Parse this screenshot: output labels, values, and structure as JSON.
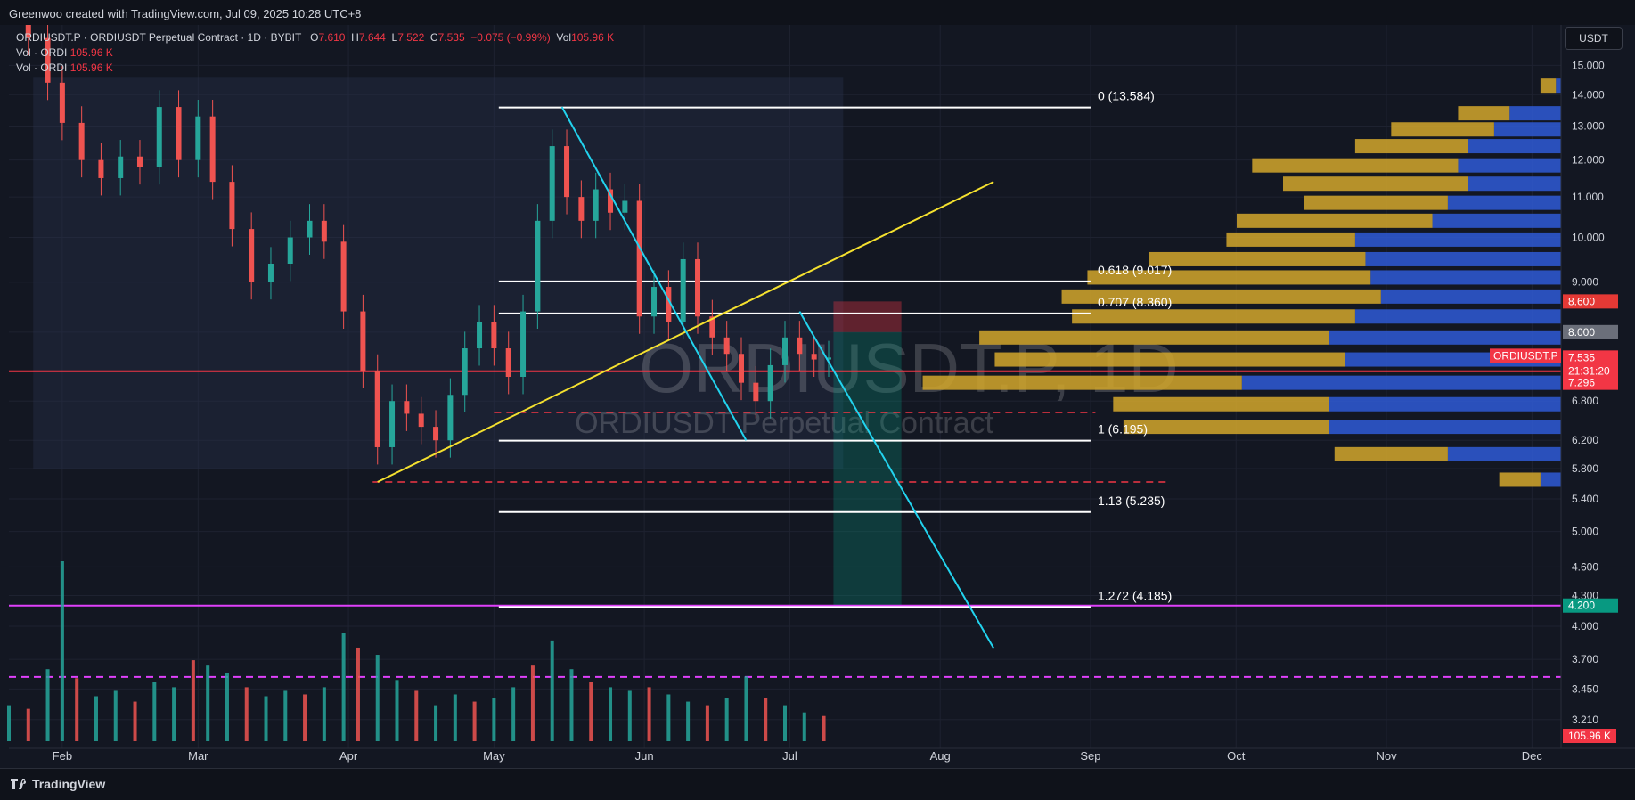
{
  "credit": "Greenwoo created with TradingView.com, Jul 09, 2025 10:28 UTC+8",
  "header": {
    "symbol_line": "ORDIUSDT.P · ORDIUSDT Perpetual Contract · 1D · BYBIT",
    "o_label": "O",
    "o_val": "7.610",
    "h_label": "H",
    "h_val": "7.644",
    "l_label": "L",
    "l_val": "7.522",
    "c_label": "C",
    "c_val": "7.535",
    "change": "−0.075 (−0.99%)",
    "vol_label": "Vol",
    "vol_val": "105.96 K",
    "vol_rows": [
      {
        "label": "Vol · ORDI",
        "value": "105.96 K"
      },
      {
        "label": "Vol · ORDI",
        "value": "105.96 K"
      }
    ]
  },
  "currency_button": "USDT",
  "watermark": {
    "symbol": "ORDIUSDT.P, 1D",
    "name": "ORDIUSDT Perpetual Contract"
  },
  "footer_brand": "TradingView",
  "colors": {
    "bg": "#131722",
    "up": "#26a69a",
    "down": "#ef5350",
    "fib": "#ffffff",
    "trend": "#f5e12f",
    "channel": "#22d3ee",
    "magenta": "#e040fb",
    "vp_up": "#d4a72c",
    "vp_down": "#2f5bd6",
    "price_line": "#f23645"
  },
  "chart_data": {
    "type": "candlestick",
    "interval": "1D",
    "y_scale": "log",
    "ylim": [
      3.0,
      16.5
    ],
    "y_ticks": [
      "15.000",
      "14.000",
      "13.000",
      "12.000",
      "11.000",
      "10.000",
      "9.000",
      "8.000",
      "7.296",
      "6.800",
      "6.200",
      "5.800",
      "5.400",
      "5.000",
      "4.600",
      "4.300",
      "4.000",
      "3.700",
      "3.450",
      "3.210"
    ],
    "x_ticks": [
      {
        "label": "Feb",
        "date": "2025-02-01"
      },
      {
        "label": "Mar",
        "date": "2025-03-01"
      },
      {
        "label": "Apr",
        "date": "2025-04-01"
      },
      {
        "label": "May",
        "date": "2025-05-01"
      },
      {
        "label": "Jun",
        "date": "2025-06-01"
      },
      {
        "label": "Jul",
        "date": "2025-07-01"
      },
      {
        "label": "Aug",
        "date": "2025-08-01"
      },
      {
        "label": "Sep",
        "date": "2025-09-01"
      },
      {
        "label": "Oct",
        "date": "2025-10-01"
      },
      {
        "label": "Nov",
        "date": "2025-11-01"
      },
      {
        "label": "Dec",
        "date": "2025-12-01"
      }
    ],
    "xlim": [
      "2025-01-21",
      "2025-12-07"
    ],
    "price_series": [
      [
        "2025-01-21",
        17.2
      ],
      [
        "2025-01-25",
        16.0
      ],
      [
        "2025-01-29",
        14.4
      ],
      [
        "2025-02-01",
        13.1
      ],
      [
        "2025-02-05",
        12.0
      ],
      [
        "2025-02-09",
        11.5
      ],
      [
        "2025-02-13",
        12.1
      ],
      [
        "2025-02-17",
        11.8
      ],
      [
        "2025-02-21",
        13.6
      ],
      [
        "2025-02-25",
        12.0
      ],
      [
        "2025-03-01",
        13.3
      ],
      [
        "2025-03-04",
        11.4
      ],
      [
        "2025-03-08",
        10.2
      ],
      [
        "2025-03-12",
        9.0
      ],
      [
        "2025-03-16",
        9.4
      ],
      [
        "2025-03-20",
        10.0
      ],
      [
        "2025-03-24",
        10.4
      ],
      [
        "2025-03-27",
        9.9
      ],
      [
        "2025-03-31",
        8.4
      ],
      [
        "2025-04-04",
        7.3
      ],
      [
        "2025-04-07",
        6.1
      ],
      [
        "2025-04-10",
        6.8
      ],
      [
        "2025-04-13",
        6.6
      ],
      [
        "2025-04-16",
        6.4
      ],
      [
        "2025-04-19",
        6.2
      ],
      [
        "2025-04-22",
        6.9
      ],
      [
        "2025-04-25",
        7.7
      ],
      [
        "2025-04-28",
        8.2
      ],
      [
        "2025-05-01",
        7.7
      ],
      [
        "2025-05-04",
        7.2
      ],
      [
        "2025-05-07",
        8.4
      ],
      [
        "2025-05-10",
        10.4
      ],
      [
        "2025-05-13",
        12.4
      ],
      [
        "2025-05-16",
        11.0
      ],
      [
        "2025-05-19",
        10.4
      ],
      [
        "2025-05-22",
        11.2
      ],
      [
        "2025-05-25",
        10.6
      ],
      [
        "2025-05-28",
        10.9
      ],
      [
        "2025-05-31",
        8.3
      ],
      [
        "2025-06-03",
        8.9
      ],
      [
        "2025-06-06",
        8.2
      ],
      [
        "2025-06-09",
        9.5
      ],
      [
        "2025-06-12",
        8.3
      ],
      [
        "2025-06-15",
        7.9
      ],
      [
        "2025-06-18",
        7.6
      ],
      [
        "2025-06-21",
        7.1
      ],
      [
        "2025-06-24",
        6.8
      ],
      [
        "2025-06-27",
        7.4
      ],
      [
        "2025-06-30",
        7.9
      ],
      [
        "2025-07-03",
        7.6
      ],
      [
        "2025-07-06",
        7.5
      ],
      [
        "2025-07-09",
        7.535
      ]
    ],
    "volume": [
      [
        "2025-01-21",
        0.2
      ],
      [
        "2025-01-25",
        0.18
      ],
      [
        "2025-01-29",
        0.4
      ],
      [
        "2025-02-01",
        1.0
      ],
      [
        "2025-02-04",
        0.35
      ],
      [
        "2025-02-08",
        0.25
      ],
      [
        "2025-02-12",
        0.28
      ],
      [
        "2025-02-16",
        0.22
      ],
      [
        "2025-02-20",
        0.33
      ],
      [
        "2025-02-24",
        0.3
      ],
      [
        "2025-02-28",
        0.45
      ],
      [
        "2025-03-03",
        0.42
      ],
      [
        "2025-03-07",
        0.38
      ],
      [
        "2025-03-11",
        0.3
      ],
      [
        "2025-03-15",
        0.25
      ],
      [
        "2025-03-19",
        0.28
      ],
      [
        "2025-03-23",
        0.26
      ],
      [
        "2025-03-27",
        0.3
      ],
      [
        "2025-03-31",
        0.6
      ],
      [
        "2025-04-03",
        0.52
      ],
      [
        "2025-04-07",
        0.48
      ],
      [
        "2025-04-11",
        0.34
      ],
      [
        "2025-04-15",
        0.28
      ],
      [
        "2025-04-19",
        0.2
      ],
      [
        "2025-04-23",
        0.26
      ],
      [
        "2025-04-27",
        0.22
      ],
      [
        "2025-05-01",
        0.24
      ],
      [
        "2025-05-05",
        0.3
      ],
      [
        "2025-05-09",
        0.42
      ],
      [
        "2025-05-13",
        0.56
      ],
      [
        "2025-05-17",
        0.4
      ],
      [
        "2025-05-21",
        0.33
      ],
      [
        "2025-05-25",
        0.3
      ],
      [
        "2025-05-29",
        0.28
      ],
      [
        "2025-06-02",
        0.3
      ],
      [
        "2025-06-06",
        0.26
      ],
      [
        "2025-06-10",
        0.22
      ],
      [
        "2025-06-14",
        0.2
      ],
      [
        "2025-06-18",
        0.24
      ],
      [
        "2025-06-22",
        0.36
      ],
      [
        "2025-06-26",
        0.24
      ],
      [
        "2025-06-30",
        0.2
      ],
      [
        "2025-07-04",
        0.16
      ],
      [
        "2025-07-08",
        0.14
      ]
    ],
    "fib_levels": [
      {
        "label": "0 (13.584)",
        "value": 13.584
      },
      {
        "label": "0.618 (9.017)",
        "value": 9.017
      },
      {
        "label": "0.707 (8.360)",
        "value": 8.36
      },
      {
        "label": "1 (6.195)",
        "value": 6.195
      },
      {
        "label": "1.13 (5.235)",
        "value": 5.235
      },
      {
        "label": "1.272 (4.185)",
        "value": 4.185
      }
    ],
    "fib_range": [
      "2025-05-02",
      "2025-09-01"
    ],
    "horizontal_lines": [
      {
        "value": 4.2,
        "color": "#e040fb",
        "style": "solid"
      },
      {
        "value": 7.296,
        "color": "#f23645",
        "style": "solid"
      },
      {
        "value": 6.62,
        "color": "#f23645",
        "style": "dashed"
      },
      {
        "value": 5.62,
        "color": "#f23645",
        "style": "dashed"
      },
      {
        "value": 3.55,
        "color": "#e040fb",
        "style": "dashed"
      }
    ],
    "trendlines": [
      {
        "color": "#f5e12f",
        "from": [
          "2025-04-07",
          5.62
        ],
        "to": [
          "2025-08-12",
          11.4
        ]
      },
      {
        "color": "#22d3ee",
        "from": [
          "2025-05-15",
          13.6
        ],
        "to": [
          "2025-06-22",
          6.2
        ]
      },
      {
        "color": "#22d3ee",
        "from": [
          "2025-07-03",
          8.4
        ],
        "to": [
          "2025-08-12",
          3.8
        ]
      }
    ],
    "position_tool": {
      "entry": 8.0,
      "stop": 8.6,
      "target": 4.2,
      "start": "2025-07-10",
      "end": "2025-07-24"
    },
    "shaded_range": {
      "start": "2025-01-26",
      "end": "2025-07-12",
      "top": 14.6,
      "bottom": 5.8
    },
    "volume_profile": [
      {
        "price": 14.3,
        "up": 0.03,
        "down": 0.01
      },
      {
        "price": 13.4,
        "up": 0.1,
        "down": 0.1
      },
      {
        "price": 12.9,
        "up": 0.2,
        "down": 0.13
      },
      {
        "price": 12.4,
        "up": 0.22,
        "down": 0.18
      },
      {
        "price": 11.85,
        "up": 0.4,
        "down": 0.2
      },
      {
        "price": 11.35,
        "up": 0.36,
        "down": 0.18
      },
      {
        "price": 10.85,
        "up": 0.28,
        "down": 0.22
      },
      {
        "price": 10.4,
        "up": 0.38,
        "down": 0.25
      },
      {
        "price": 9.95,
        "up": 0.25,
        "down": 0.4
      },
      {
        "price": 9.5,
        "up": 0.42,
        "down": 0.38
      },
      {
        "price": 9.1,
        "up": 0.55,
        "down": 0.37
      },
      {
        "price": 8.7,
        "up": 0.62,
        "down": 0.35
      },
      {
        "price": 8.3,
        "up": 0.55,
        "down": 0.4
      },
      {
        "price": 7.9,
        "up": 0.68,
        "down": 0.45
      },
      {
        "price": 7.5,
        "up": 0.68,
        "down": 0.42
      },
      {
        "price": 7.1,
        "up": 0.62,
        "down": 0.62
      },
      {
        "price": 6.75,
        "up": 0.42,
        "down": 0.45
      },
      {
        "price": 6.4,
        "up": 0.4,
        "down": 0.45
      },
      {
        "price": 6.0,
        "up": 0.22,
        "down": 0.22
      },
      {
        "price": 5.65,
        "up": 0.08,
        "down": 0.04
      }
    ],
    "price_badges": [
      {
        "label": "8.600",
        "value": 8.6,
        "color": "#e53935"
      },
      {
        "label": "8.000",
        "value": 8.0,
        "color": "#6b6f7a"
      },
      {
        "label": "ORDIUSDT.P",
        "value": 7.535,
        "color": "#f23645",
        "side": "left"
      },
      {
        "label": "7.535",
        "value": 7.535,
        "color": "#f23645"
      },
      {
        "label": "21:31:20",
        "value": 7.3,
        "color": "#f23645"
      },
      {
        "label": "7.296",
        "value": 7.1,
        "color": "#f23645"
      },
      {
        "label": "4.200",
        "value": 4.2,
        "color": "#089981"
      },
      {
        "label": "105.96 K",
        "value": null,
        "color": "#f23645"
      }
    ]
  }
}
